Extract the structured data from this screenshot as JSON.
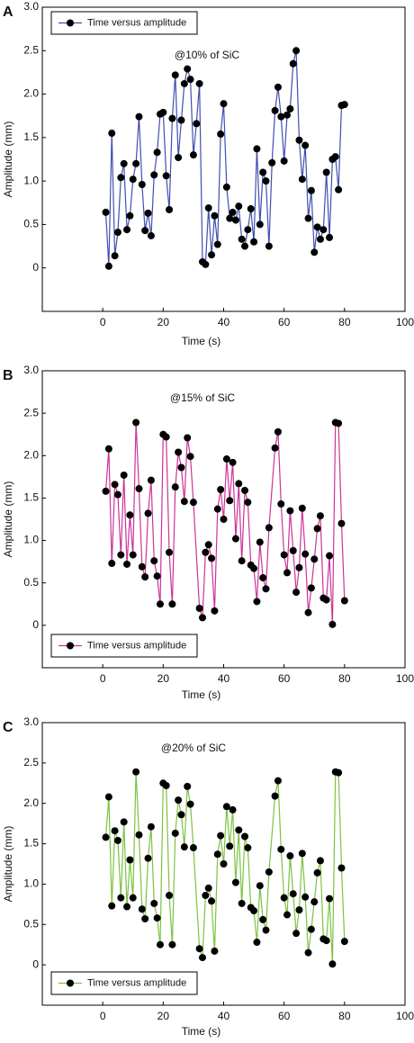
{
  "chart_data": [
    {
      "type": "line",
      "panel_label": "A",
      "annotation": "@10% of SiC",
      "xlabel": "Time (s)",
      "ylabel": "Amplitude (mm)",
      "legend": "upper left",
      "xlim": [
        -20,
        100
      ],
      "ylim": [
        -0.5,
        3.0
      ],
      "xticks": [
        0,
        20,
        40,
        60,
        80,
        100
      ],
      "yticks": [
        0,
        0.5,
        {
          "value": 1,
          "label": "1.0"
        },
        1.5,
        {
          "value": 2,
          "label": "2.0"
        },
        2.5,
        {
          "value": 3,
          "label": "3.0"
        }
      ],
      "x": [
        1,
        2,
        3,
        4,
        5,
        6,
        7,
        8,
        9,
        10,
        11,
        12,
        13,
        14,
        15,
        16,
        17,
        18,
        19,
        20,
        21,
        22,
        23,
        24,
        25,
        26,
        27,
        28,
        29,
        30,
        31,
        32,
        33,
        34,
        35,
        36,
        37,
        38,
        39,
        40,
        41,
        42,
        43,
        44,
        45,
        46,
        47,
        48,
        49,
        50,
        51,
        52,
        53,
        54,
        55,
        56,
        57,
        58,
        59,
        60,
        61,
        62,
        63,
        64,
        65,
        66,
        67,
        68,
        69,
        70,
        71,
        72,
        73,
        74,
        75,
        76,
        77,
        78,
        79,
        80
      ],
      "series": [
        {
          "name": "Time versus amplitude",
          "color": "#3f4fb0",
          "values": [
            0.64,
            0.02,
            1.55,
            0.14,
            0.41,
            1.04,
            1.2,
            0.44,
            0.6,
            1.02,
            1.2,
            1.74,
            0.96,
            0.43,
            0.63,
            0.37,
            1.07,
            1.33,
            1.77,
            1.79,
            1.06,
            0.67,
            1.72,
            2.22,
            1.27,
            1.7,
            2.12,
            2.29,
            2.17,
            1.3,
            1.66,
            2.12,
            0.07,
            0.04,
            0.69,
            0.15,
            0.6,
            0.27,
            1.54,
            1.89,
            0.93,
            0.57,
            0.64,
            0.55,
            0.71,
            0.33,
            0.25,
            0.44,
            0.68,
            0.3,
            1.37,
            0.5,
            1.1,
            1.0,
            0.25,
            1.21,
            1.81,
            2.08,
            1.74,
            1.23,
            1.76,
            1.83,
            2.35,
            2.5,
            1.47,
            1.02,
            1.41,
            0.57,
            0.89,
            0.18,
            0.47,
            0.33,
            0.44,
            1.1,
            0.35,
            1.25,
            1.28,
            0.9,
            1.87,
            1.88
          ]
        }
      ]
    },
    {
      "type": "line",
      "panel_label": "B",
      "annotation": "@15% of SiC",
      "xlabel": "Time (s)",
      "ylabel": "Amplitude (mm)",
      "legend": "lower left",
      "xlim": [
        -20,
        100
      ],
      "ylim": [
        -0.5,
        3.0
      ],
      "xticks": [
        0,
        20,
        40,
        60,
        80,
        100
      ],
      "yticks": [
        0,
        0.5,
        {
          "value": 1,
          "label": "1.0"
        },
        1.5,
        {
          "value": 2,
          "label": "2.0"
        },
        2.5,
        {
          "value": 3,
          "label": "3.0"
        }
      ],
      "x": [
        1,
        2,
        3,
        4,
        5,
        6,
        7,
        8,
        9,
        10,
        11,
        12,
        13,
        14,
        15,
        16,
        17,
        18,
        19,
        20,
        21,
        22,
        23,
        24,
        25,
        26,
        27,
        28,
        29,
        30,
        32,
        33,
        34,
        35,
        36,
        37,
        38,
        39,
        40,
        41,
        42,
        43,
        44,
        45,
        46,
        47,
        48,
        49,
        50,
        51,
        52,
        53,
        54,
        55,
        57,
        58,
        59,
        60,
        61,
        62,
        63,
        64,
        65,
        66,
        67,
        68,
        69,
        70,
        71,
        72,
        73,
        74,
        75,
        76,
        77,
        78,
        79,
        80
      ],
      "series": [
        {
          "name": "Time versus amplitude",
          "color": "#cc3399",
          "values": [
            1.58,
            2.08,
            0.73,
            1.66,
            1.54,
            0.83,
            1.77,
            0.72,
            1.3,
            0.83,
            2.39,
            1.61,
            0.69,
            0.57,
            1.32,
            1.71,
            0.76,
            0.58,
            0.25,
            2.25,
            2.22,
            0.86,
            0.25,
            1.63,
            2.04,
            1.86,
            1.46,
            2.21,
            1.99,
            1.45,
            0.2,
            0.09,
            0.86,
            0.95,
            0.79,
            0.17,
            1.37,
            1.6,
            1.25,
            1.96,
            1.47,
            1.92,
            1.02,
            1.67,
            0.76,
            1.59,
            1.45,
            0.71,
            0.67,
            0.28,
            0.98,
            0.56,
            0.43,
            1.15,
            2.09,
            2.28,
            1.43,
            0.83,
            0.62,
            1.35,
            0.88,
            0.39,
            0.68,
            1.38,
            0.84,
            0.15,
            0.44,
            0.78,
            1.14,
            1.29,
            0.32,
            0.3,
            0.82,
            0.01,
            2.39,
            2.38,
            1.2,
            0.29
          ]
        }
      ]
    },
    {
      "type": "line",
      "panel_label": "C",
      "annotation": "@20% of SiC",
      "xlabel": "Time (s)",
      "ylabel": "Amplitude (mm)",
      "legend": "lower left",
      "xlim": [
        -20,
        100
      ],
      "ylim": [
        -0.5,
        3.0
      ],
      "xticks": [
        0,
        20,
        40,
        60,
        80,
        100
      ],
      "yticks": [
        0,
        0.5,
        {
          "value": 1,
          "label": "1.0"
        },
        1.5,
        {
          "value": 2,
          "label": "2.0"
        },
        2.5,
        {
          "value": 3,
          "label": "3.0"
        }
      ],
      "x": [
        1,
        2,
        3,
        4,
        5,
        6,
        7,
        8,
        9,
        10,
        11,
        12,
        13,
        14,
        15,
        16,
        17,
        18,
        19,
        20,
        21,
        22,
        23,
        24,
        25,
        26,
        27,
        28,
        29,
        30,
        32,
        33,
        34,
        35,
        36,
        37,
        38,
        39,
        40,
        41,
        42,
        43,
        44,
        45,
        46,
        47,
        48,
        49,
        50,
        51,
        52,
        53,
        54,
        55,
        57,
        58,
        59,
        60,
        61,
        62,
        63,
        64,
        65,
        66,
        67,
        68,
        69,
        70,
        71,
        72,
        73,
        74,
        75,
        76,
        77,
        78,
        79,
        80
      ],
      "series": [
        {
          "name": "Time versus amplitude",
          "color": "#7dc242",
          "values": [
            1.58,
            2.08,
            0.73,
            1.66,
            1.54,
            0.83,
            1.77,
            0.72,
            1.3,
            0.83,
            2.39,
            1.61,
            0.69,
            0.57,
            1.32,
            1.71,
            0.76,
            0.58,
            0.25,
            2.25,
            2.22,
            0.86,
            0.25,
            1.63,
            2.04,
            1.86,
            1.46,
            2.21,
            1.99,
            1.45,
            0.2,
            0.09,
            0.86,
            0.95,
            0.79,
            0.17,
            1.37,
            1.6,
            1.25,
            1.96,
            1.47,
            1.92,
            1.02,
            1.67,
            0.76,
            1.59,
            1.45,
            0.71,
            0.67,
            0.28,
            0.98,
            0.56,
            0.43,
            1.15,
            2.09,
            2.28,
            1.43,
            0.83,
            0.62,
            1.35,
            0.88,
            0.39,
            0.68,
            1.38,
            0.84,
            0.15,
            0.44,
            0.78,
            1.14,
            1.29,
            0.32,
            0.3,
            0.82,
            0.01,
            2.39,
            2.38,
            1.2,
            0.29
          ]
        }
      ]
    }
  ]
}
